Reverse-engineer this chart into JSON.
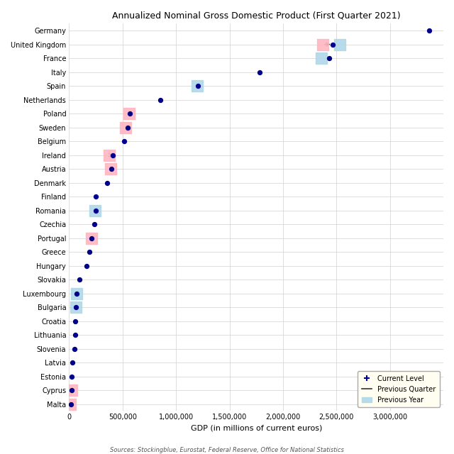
{
  "title": "Annualized Nominal Gross Domestic Product (First Quarter 2021)",
  "xlabel": "GDP (in millions of current euros)",
  "source": "Sources: Stockingblue, Eurostat, Federal Reserve, Office for National Statistics",
  "countries": [
    "Germany",
    "United Kingdom",
    "France",
    "Italy",
    "Spain",
    "Netherlands",
    "Poland",
    "Sweden",
    "Belgium",
    "Ireland",
    "Austria",
    "Denmark",
    "Finland",
    "Romania",
    "Czechia",
    "Portugal",
    "Greece",
    "Hungary",
    "Slovakia",
    "Luxembourg",
    "Bulgaria",
    "Croatia",
    "Lithuania",
    "Slovenia",
    "Latvia",
    "Estonia",
    "Cyprus",
    "Malta"
  ],
  "current": [
    3367000,
    2463000,
    2429000,
    1782000,
    1207000,
    856000,
    567000,
    548000,
    515000,
    410000,
    394000,
    353000,
    247000,
    248000,
    237000,
    212000,
    188000,
    163000,
    98000,
    70000,
    63000,
    56000,
    54000,
    50000,
    33000,
    27000,
    22000,
    14000
  ],
  "prev_quarter": [
    null,
    2370000,
    null,
    null,
    null,
    null,
    560000,
    530000,
    null,
    375000,
    390000,
    null,
    null,
    null,
    null,
    210000,
    null,
    null,
    null,
    null,
    null,
    null,
    null,
    null,
    null,
    null,
    21000,
    13000
  ],
  "prev_year": [
    null,
    2530000,
    2360000,
    null,
    1195000,
    null,
    null,
    null,
    null,
    null,
    null,
    null,
    null,
    244000,
    null,
    null,
    null,
    null,
    null,
    68000,
    62000,
    null,
    null,
    null,
    null,
    null,
    null,
    null
  ],
  "current_color": "#00008B",
  "prev_quarter_color": "#FFB6C1",
  "prev_year_color": "#B0D8E8",
  "xlim": [
    0,
    3500000
  ],
  "xticks": [
    0,
    500000,
    1000000,
    1500000,
    2000000,
    2500000,
    3000000
  ],
  "xticklabels": [
    "0",
    "500,000",
    "1,000,000",
    "1,500,000",
    "2,000,000",
    "2,500,000",
    "3,000,000"
  ],
  "bg_color": "#FFFFFF",
  "grid_color": "#D0D0D0",
  "legend_bg": "#FFFEF0",
  "dot_size": 18,
  "square_size": 120,
  "arrow_countries": [
    "United Kingdom",
    "Ireland"
  ]
}
